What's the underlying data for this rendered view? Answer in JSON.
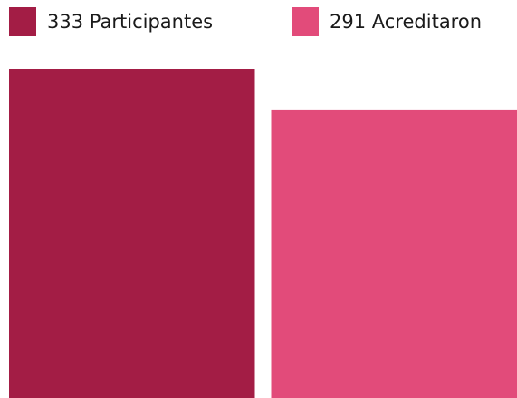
{
  "chart_data": {
    "type": "bar",
    "series": [
      {
        "name": "Participantes",
        "color": "#a31d45",
        "values": [
          333
        ]
      },
      {
        "name": "Acreditaron",
        "color": "#e24b7a",
        "values": [
          291
        ]
      }
    ]
  }
}
